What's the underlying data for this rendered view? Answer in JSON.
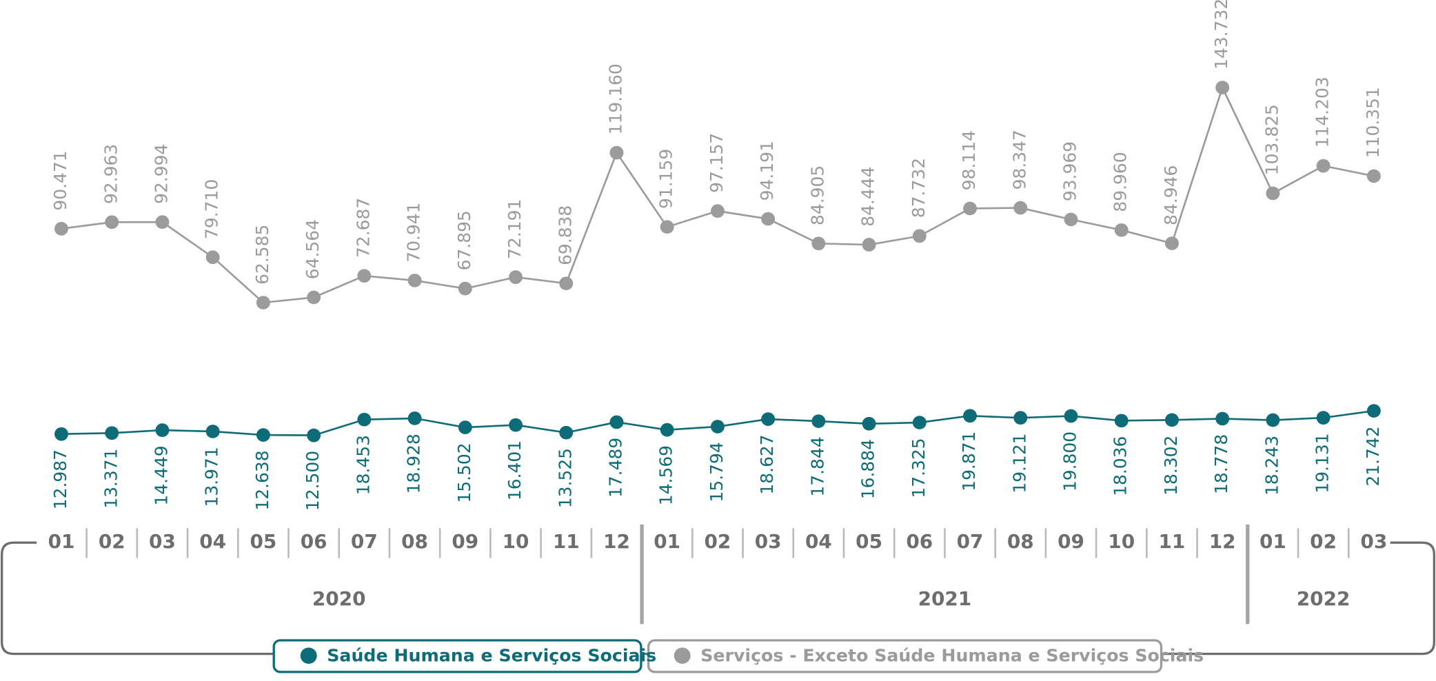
{
  "chart_data": {
    "type": "line",
    "groups": [
      {
        "name": "2020",
        "categories": [
          "01",
          "02",
          "03",
          "04",
          "05",
          "06",
          "07",
          "08",
          "09",
          "10",
          "11",
          "12"
        ]
      },
      {
        "name": "2021",
        "categories": [
          "01",
          "02",
          "03",
          "04",
          "05",
          "06",
          "07",
          "08",
          "09",
          "10",
          "11",
          "12"
        ]
      },
      {
        "name": "2022",
        "categories": [
          "01",
          "02",
          "03"
        ]
      }
    ],
    "series": [
      {
        "name": "Saúde Humana e Serviços Sociais",
        "color": "#0e6b78",
        "values": [
          12987,
          13371,
          14449,
          13971,
          12638,
          12500,
          18453,
          18928,
          15502,
          16401,
          13525,
          17489,
          14569,
          15794,
          18627,
          17844,
          16884,
          17325,
          19871,
          19121,
          19800,
          18036,
          18302,
          18778,
          18243,
          19131,
          21742
        ],
        "value_labels": [
          "12.987",
          "13.371",
          "14.449",
          "13.971",
          "12.638",
          "12.500",
          "18.453",
          "18.928",
          "15.502",
          "16.401",
          "13.525",
          "17.489",
          "14.569",
          "15.794",
          "18.627",
          "17.844",
          "16.884",
          "17.325",
          "19.871",
          "19.121",
          "19.800",
          "18.036",
          "18.302",
          "18.778",
          "18.243",
          "19.131",
          "21.742"
        ]
      },
      {
        "name": "Serviços - Exceto Saúde Humana e Serviços Sociais",
        "color": "#9b9b9b",
        "values": [
          90471,
          92963,
          92994,
          79710,
          62585,
          64564,
          72687,
          70941,
          67895,
          72191,
          69838,
          119160,
          91159,
          97157,
          94191,
          84905,
          84444,
          87732,
          98114,
          98347,
          93969,
          89960,
          84946,
          143732,
          103825,
          114203,
          110351
        ],
        "value_labels": [
          "90.471",
          "92.963",
          "92.994",
          "79.710",
          "62.585",
          "64.564",
          "72.687",
          "70.941",
          "67.895",
          "72.191",
          "69.838",
          "119.160",
          "91.159",
          "97.157",
          "94.191",
          "84.905",
          "84.444",
          "87.732",
          "98.114",
          "98.347",
          "93.969",
          "89.960",
          "84.946",
          "143.732",
          "103.825",
          "114.203",
          "110.351"
        ]
      }
    ]
  }
}
